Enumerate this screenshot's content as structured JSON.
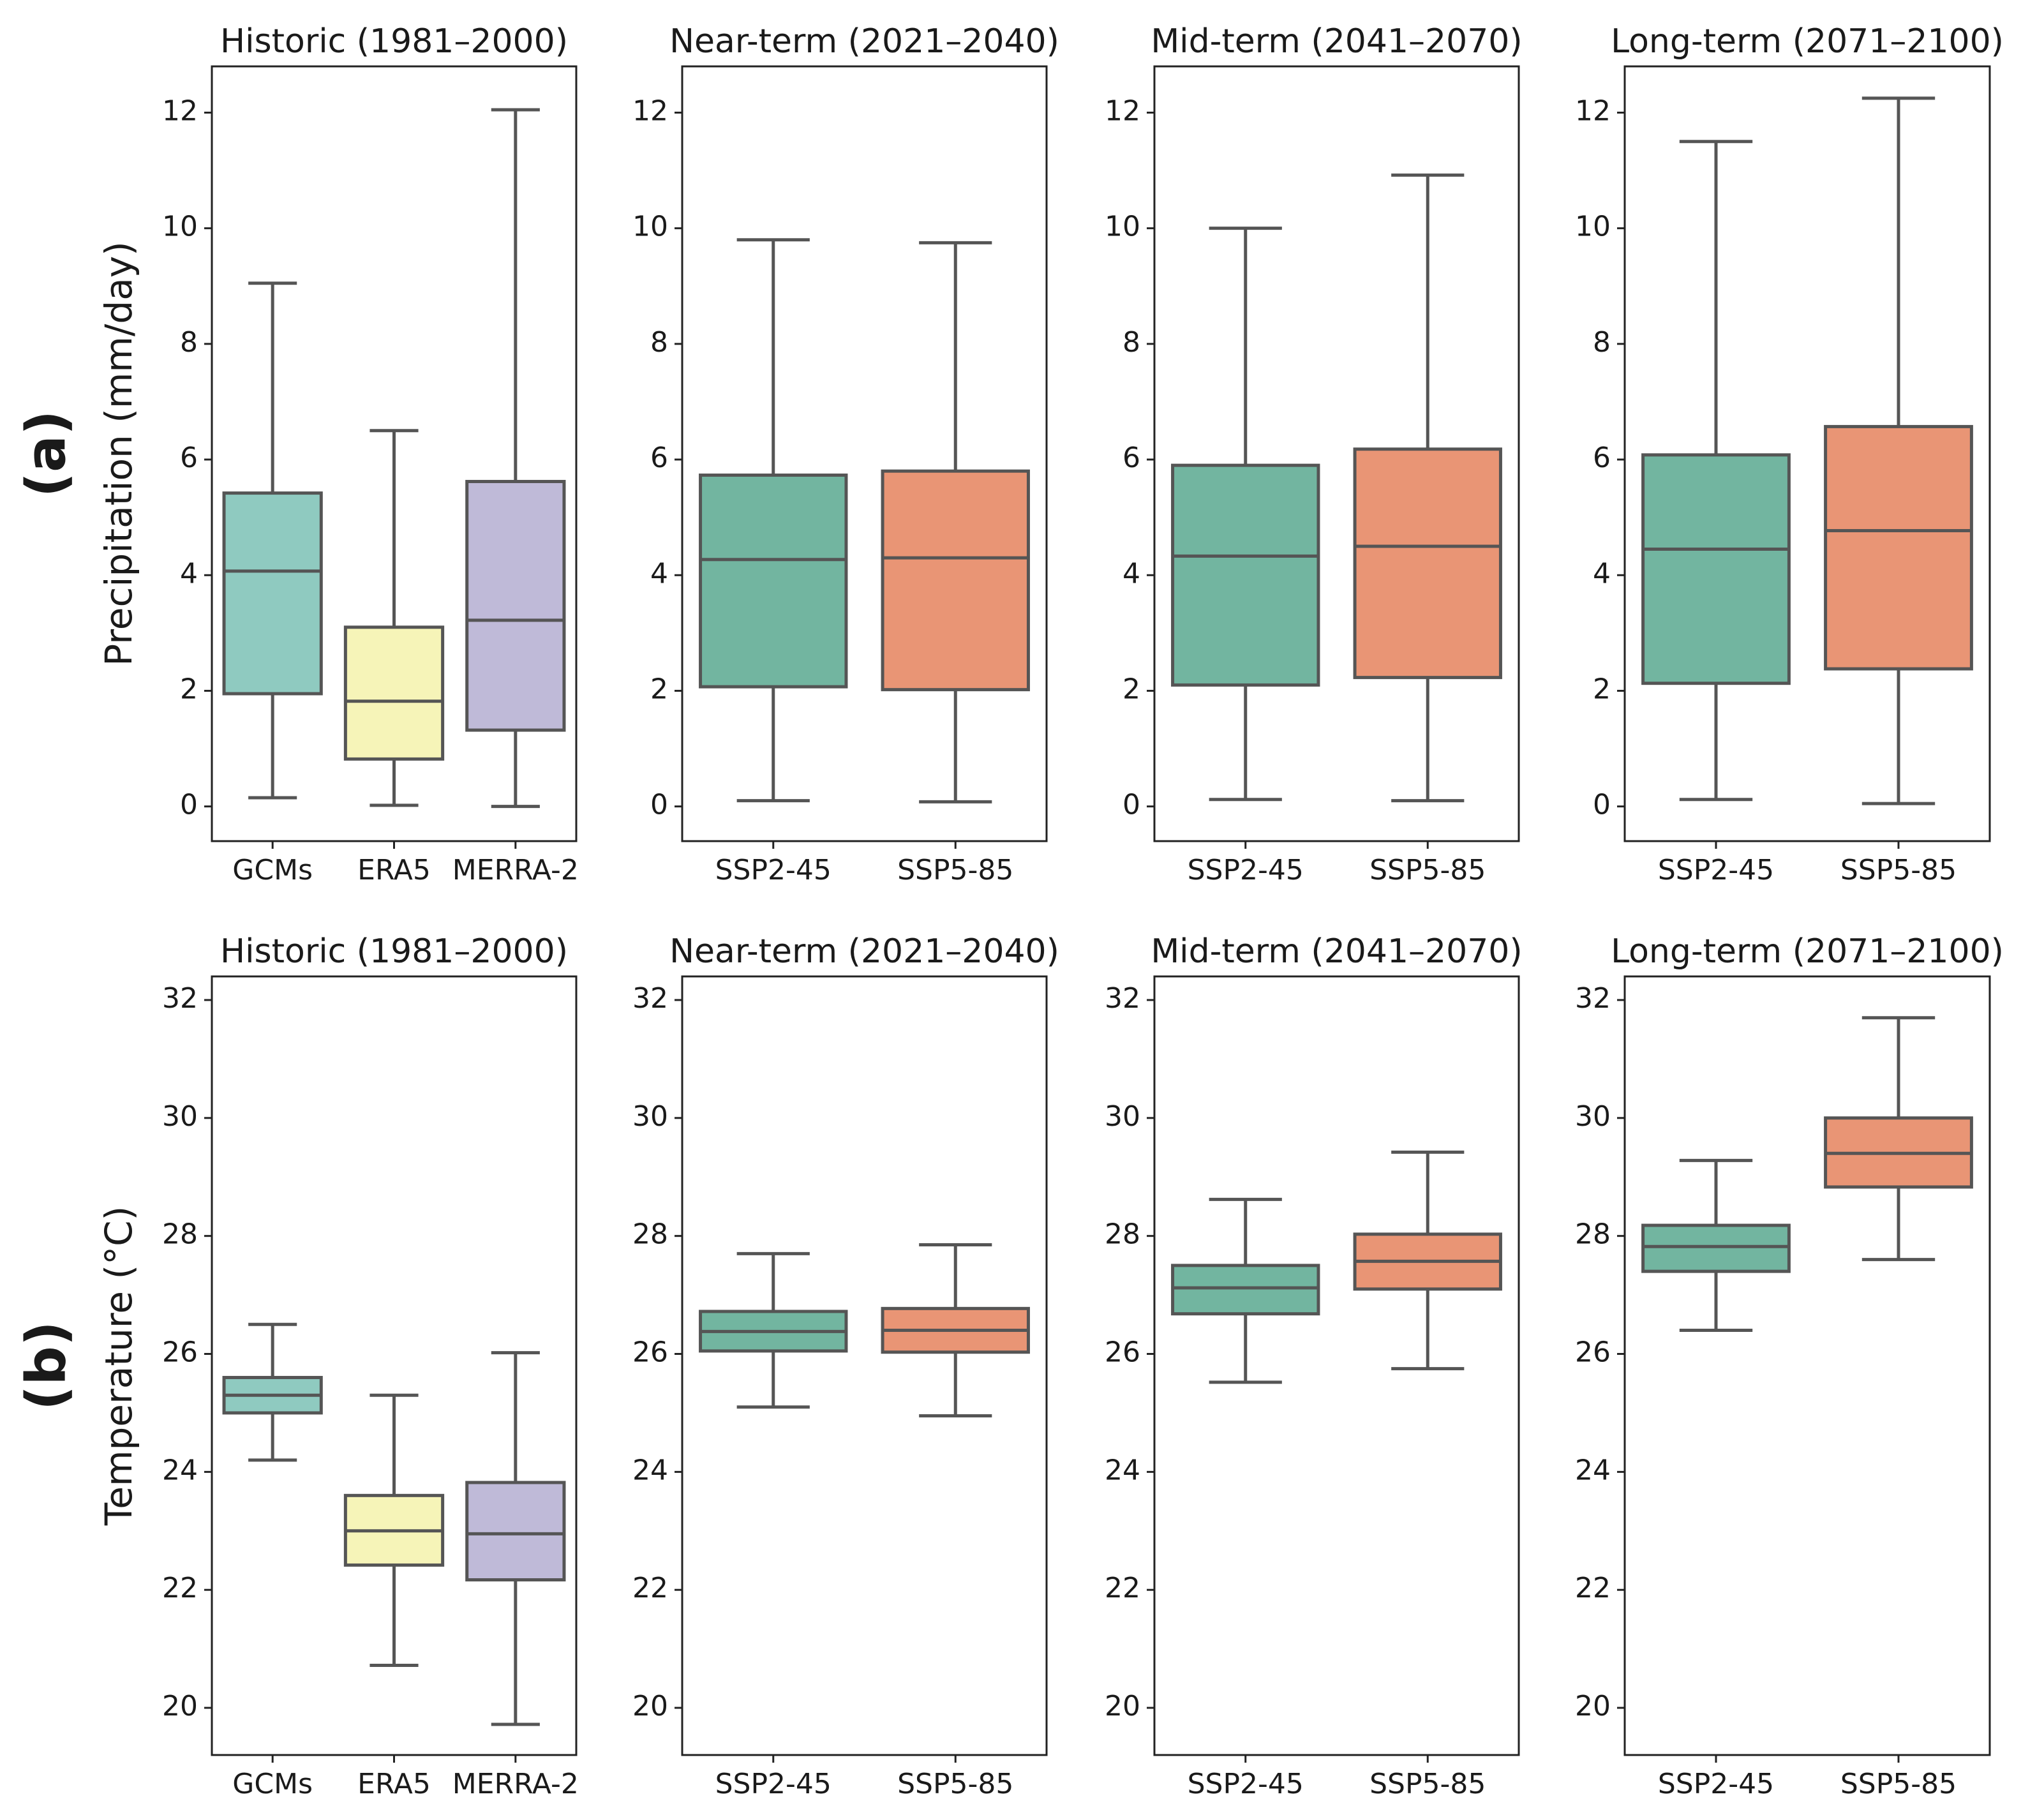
{
  "colors": {
    "GCMs": "#8fcac0",
    "ERA5": "#f6f4b8",
    "MERRA-2": "#bfbad8",
    "SSP2-45": "#72b5a0",
    "SSP5-85": "#e99575",
    "line": "#555555",
    "frame": "#222222"
  },
  "rows": [
    {
      "label": "(a)",
      "ylabel": "Precipitation (mm/day)",
      "chart_data": [
        {
          "type": "box",
          "title": "Historic (1981–2000)",
          "ylim": [
            -0.6,
            12.8
          ],
          "yticks": [
            0,
            2,
            4,
            6,
            8,
            10,
            12
          ],
          "categories": [
            "GCMs",
            "ERA5",
            "MERRA-2"
          ],
          "boxes": [
            {
              "category": "GCMs",
              "min": 0.15,
              "q1": 1.95,
              "median": 4.07,
              "q3": 5.42,
              "max": 9.05
            },
            {
              "category": "ERA5",
              "min": 0.02,
              "q1": 0.82,
              "median": 1.82,
              "q3": 3.1,
              "max": 6.5
            },
            {
              "category": "MERRA-2",
              "min": 0.0,
              "q1": 1.32,
              "median": 3.22,
              "q3": 5.62,
              "max": 12.05
            }
          ]
        },
        {
          "type": "box",
          "title": "Near-term (2021–2040)",
          "ylim": [
            -0.6,
            12.8
          ],
          "yticks": [
            0,
            2,
            4,
            6,
            8,
            10,
            12
          ],
          "categories": [
            "SSP2-45",
            "SSP5-85"
          ],
          "boxes": [
            {
              "category": "SSP2-45",
              "min": 0.1,
              "q1": 2.07,
              "median": 4.27,
              "q3": 5.73,
              "max": 9.8
            },
            {
              "category": "SSP5-85",
              "min": 0.08,
              "q1": 2.02,
              "median": 4.3,
              "q3": 5.8,
              "max": 9.75
            }
          ]
        },
        {
          "type": "box",
          "title": "Mid-term (2041–2070)",
          "ylim": [
            -0.6,
            12.8
          ],
          "yticks": [
            0,
            2,
            4,
            6,
            8,
            10,
            12
          ],
          "categories": [
            "SSP2-45",
            "SSP5-85"
          ],
          "boxes": [
            {
              "category": "SSP2-45",
              "min": 0.12,
              "q1": 2.1,
              "median": 4.33,
              "q3": 5.9,
              "max": 10.0
            },
            {
              "category": "SSP5-85",
              "min": 0.1,
              "q1": 2.23,
              "median": 4.5,
              "q3": 6.18,
              "max": 10.92
            }
          ]
        },
        {
          "type": "box",
          "title": "Long-term (2071–2100)",
          "ylim": [
            -0.6,
            12.8
          ],
          "yticks": [
            0,
            2,
            4,
            6,
            8,
            10,
            12
          ],
          "categories": [
            "SSP2-45",
            "SSP5-85"
          ],
          "boxes": [
            {
              "category": "SSP2-45",
              "min": 0.12,
              "q1": 2.13,
              "median": 4.45,
              "q3": 6.08,
              "max": 11.5
            },
            {
              "category": "SSP5-85",
              "min": 0.05,
              "q1": 2.38,
              "median": 4.77,
              "q3": 6.57,
              "max": 12.25
            }
          ]
        }
      ]
    },
    {
      "label": "(b)",
      "ylabel": "Temperature (°C)",
      "chart_data": [
        {
          "type": "box",
          "title": "Historic (1981–2000)",
          "ylim": [
            19.2,
            32.4
          ],
          "yticks": [
            20,
            22,
            24,
            26,
            28,
            30,
            32
          ],
          "categories": [
            "GCMs",
            "ERA5",
            "MERRA-2"
          ],
          "boxes": [
            {
              "category": "GCMs",
              "min": 24.2,
              "q1": 25.0,
              "median": 25.3,
              "q3": 25.6,
              "max": 26.5
            },
            {
              "category": "ERA5",
              "min": 20.72,
              "q1": 22.42,
              "median": 23.0,
              "q3": 23.6,
              "max": 25.3
            },
            {
              "category": "MERRA-2",
              "min": 19.72,
              "q1": 22.17,
              "median": 22.95,
              "q3": 23.82,
              "max": 26.02
            }
          ]
        },
        {
          "type": "box",
          "title": "Near-term (2021–2040)",
          "ylim": [
            19.2,
            32.4
          ],
          "yticks": [
            20,
            22,
            24,
            26,
            28,
            30,
            32
          ],
          "categories": [
            "SSP2-45",
            "SSP5-85"
          ],
          "boxes": [
            {
              "category": "SSP2-45",
              "min": 25.1,
              "q1": 26.05,
              "median": 26.38,
              "q3": 26.72,
              "max": 27.7
            },
            {
              "category": "SSP5-85",
              "min": 24.95,
              "q1": 26.03,
              "median": 26.4,
              "q3": 26.77,
              "max": 27.85
            }
          ]
        },
        {
          "type": "box",
          "title": "Mid-term (2041–2070)",
          "ylim": [
            19.2,
            32.4
          ],
          "yticks": [
            20,
            22,
            24,
            26,
            28,
            30,
            32
          ],
          "categories": [
            "SSP2-45",
            "SSP5-85"
          ],
          "boxes": [
            {
              "category": "SSP2-45",
              "min": 25.52,
              "q1": 26.68,
              "median": 27.12,
              "q3": 27.5,
              "max": 28.62
            },
            {
              "category": "SSP5-85",
              "min": 25.75,
              "q1": 27.1,
              "median": 27.57,
              "q3": 28.03,
              "max": 29.42
            }
          ]
        },
        {
          "type": "box",
          "title": "Long-term (2071–2100)",
          "ylim": [
            19.2,
            32.4
          ],
          "yticks": [
            20,
            22,
            24,
            26,
            28,
            30,
            32
          ],
          "categories": [
            "SSP2-45",
            "SSP5-85"
          ],
          "boxes": [
            {
              "category": "SSP2-45",
              "min": 26.4,
              "q1": 27.4,
              "median": 27.82,
              "q3": 28.18,
              "max": 29.28
            },
            {
              "category": "SSP5-85",
              "min": 27.6,
              "q1": 28.83,
              "median": 29.4,
              "q3": 30.0,
              "max": 31.7
            }
          ]
        }
      ]
    }
  ]
}
